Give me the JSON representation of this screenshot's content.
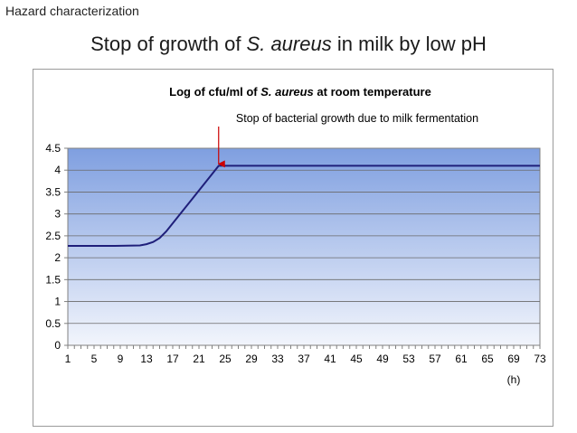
{
  "slide": {
    "section_label": "Hazard characterization",
    "title_prefix": "Stop of growth of ",
    "title_italic": "S. aureus",
    "title_suffix": " in milk by low pH"
  },
  "chart_data": {
    "type": "line",
    "title_prefix": "Log of cfu/ml  of ",
    "title_italic": "S. aureus",
    "title_suffix": " at room temperature",
    "xlabel": "(h)",
    "ylabel": "",
    "x_tick_labels": [
      "1",
      "5",
      "9",
      "13",
      "17",
      "21",
      "25",
      "29",
      "33",
      "37",
      "41",
      "45",
      "49",
      "53",
      "57",
      "61",
      "65",
      "69",
      "73"
    ],
    "xlim": [
      1,
      73
    ],
    "ylim": [
      0,
      4.5
    ],
    "y_ticks": [
      "0",
      "0.5",
      "1",
      "1.5",
      "2",
      "2.5",
      "3",
      "3.5",
      "4",
      "4.5"
    ],
    "grid": true,
    "annotation": {
      "text": "Stop of bacterial growth due to milk fermentation",
      "x": 24
    },
    "series": [
      {
        "name": "",
        "x": [
          1,
          8,
          12,
          13,
          14,
          15,
          16,
          20,
          24,
          30,
          40,
          50,
          60,
          73
        ],
        "y": [
          2.27,
          2.27,
          2.28,
          2.31,
          2.36,
          2.45,
          2.6,
          3.35,
          4.1,
          4.1,
          4.1,
          4.1,
          4.1,
          4.1
        ]
      }
    ],
    "colors": {
      "line": "#1f1f7a",
      "plot_top": "#7f9fe0",
      "plot_bottom": "#f2f5fc",
      "arrow": "#cc0000"
    }
  }
}
